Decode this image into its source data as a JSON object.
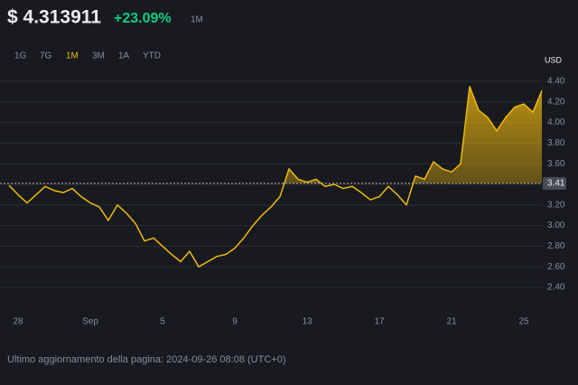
{
  "header": {
    "price": "$ 4.313911",
    "change": "+23.09%",
    "period": "1M"
  },
  "tabs": [
    "1G",
    "7G",
    "1M",
    "3M",
    "1A",
    "YTD"
  ],
  "active_tab": 2,
  "footer": "Ultimo aggiornamento della pagina: 2024-09-26 08:08 (UTC+0)",
  "chart_data": {
    "type": "line",
    "y_axis_label": "USD",
    "color": "#f0b90b",
    "grid": true,
    "reference_value": 3.41,
    "categories": [
      null,
      "28",
      null,
      null,
      null,
      null,
      null,
      null,
      null,
      "Sep",
      null,
      null,
      null,
      null,
      null,
      null,
      null,
      "5",
      null,
      null,
      null,
      null,
      null,
      null,
      null,
      "9",
      null,
      null,
      null,
      null,
      null,
      null,
      null,
      "13",
      null,
      null,
      null,
      null,
      null,
      null,
      null,
      "17",
      null,
      null,
      null,
      null,
      null,
      null,
      null,
      "21",
      null,
      null,
      null,
      null,
      null,
      null,
      null,
      "25",
      null,
      null
    ],
    "values": [
      3.39,
      3.3,
      3.22,
      3.3,
      3.38,
      3.34,
      3.32,
      3.36,
      3.28,
      3.22,
      3.18,
      3.05,
      3.2,
      3.12,
      3.02,
      2.85,
      2.88,
      2.8,
      2.72,
      2.65,
      2.75,
      2.6,
      2.65,
      2.7,
      2.72,
      2.78,
      2.88,
      3.0,
      3.1,
      3.18,
      3.28,
      3.55,
      3.45,
      3.42,
      3.45,
      3.38,
      3.4,
      3.36,
      3.38,
      3.32,
      3.25,
      3.28,
      3.38,
      3.3,
      3.2,
      3.48,
      3.45,
      3.62,
      3.55,
      3.52,
      3.6,
      4.35,
      4.12,
      4.05,
      3.92,
      4.05,
      4.15,
      4.18,
      4.1,
      4.31
    ],
    "ylim": [
      2.2,
      4.65
    ],
    "yticks": [
      {
        "value": 2.4,
        "label": "2.40"
      },
      {
        "value": 2.6,
        "label": "2.60"
      },
      {
        "value": 2.8,
        "label": "2.80"
      },
      {
        "value": 3,
        "label": "3.00"
      },
      {
        "value": 3.2,
        "label": "3.20"
      },
      {
        "value": 3.4,
        "label": "3.40"
      },
      {
        "value": 3.6,
        "label": "3.60"
      },
      {
        "value": 3.8,
        "label": "3.80"
      },
      {
        "value": 4,
        "label": "4.00"
      },
      {
        "value": 4.2,
        "label": "4.20"
      },
      {
        "value": 4.4,
        "label": "4.40"
      }
    ]
  }
}
